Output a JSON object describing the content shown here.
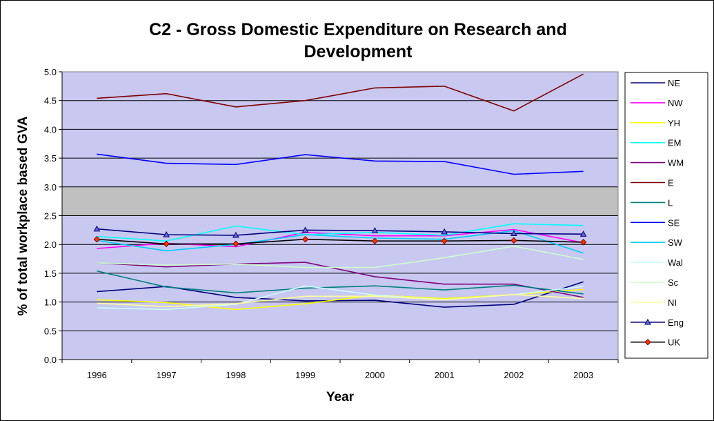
{
  "chart_data": {
    "type": "line",
    "title_line1": "C2 - Gross Domestic Expenditure on Research and",
    "title_line2": "Development",
    "xlabel": "Year",
    "ylabel": "% of total workplace based GVA",
    "x": [
      "1996",
      "1997",
      "1998",
      "1999",
      "2000",
      "2001",
      "2002",
      "2003"
    ],
    "ylim": [
      0,
      5
    ],
    "yticks": [
      "0.0",
      "0.5",
      "1.0",
      "1.5",
      "2.0",
      "2.5",
      "3.0",
      "3.5",
      "4.0",
      "4.5",
      "5.0"
    ],
    "grid": true,
    "legend": "right",
    "plot_background": "#c8c8f0",
    "band_background": "#c0c0c0",
    "series": [
      {
        "name": "NE",
        "color": "#000080",
        "marker": "none",
        "values": [
          1.18,
          1.27,
          1.08,
          1.02,
          1.03,
          0.91,
          0.96,
          1.35
        ]
      },
      {
        "name": "NW",
        "color": "#ff00ff",
        "marker": "none",
        "values": [
          1.93,
          2.02,
          1.96,
          2.21,
          2.15,
          2.15,
          2.26,
          2.03
        ]
      },
      {
        "name": "YH",
        "color": "#ffff00",
        "marker": "none",
        "values": [
          1.04,
          0.99,
          0.87,
          0.97,
          1.12,
          1.06,
          1.13,
          1.22
        ]
      },
      {
        "name": "EM",
        "color": "#00ffff",
        "marker": "none",
        "values": [
          2.14,
          2.06,
          2.32,
          2.17,
          2.21,
          2.16,
          2.36,
          2.33
        ]
      },
      {
        "name": "WM",
        "color": "#800080",
        "marker": "none",
        "values": [
          1.68,
          1.61,
          1.66,
          1.69,
          1.44,
          1.31,
          1.31,
          1.08
        ]
      },
      {
        "name": "E",
        "color": "#800000",
        "marker": "none",
        "values": [
          4.54,
          4.62,
          4.39,
          4.5,
          4.72,
          4.75,
          4.32,
          4.96
        ]
      },
      {
        "name": "L",
        "color": "#008080",
        "marker": "none",
        "values": [
          1.54,
          1.26,
          1.16,
          1.24,
          1.28,
          1.21,
          1.29,
          1.14
        ]
      },
      {
        "name": "SE",
        "color": "#0000ff",
        "marker": "none",
        "values": [
          3.57,
          3.41,
          3.39,
          3.56,
          3.45,
          3.44,
          3.22,
          3.27
        ]
      },
      {
        "name": "SW",
        "color": "#00ccff",
        "marker": "none",
        "values": [
          2.07,
          1.89,
          2.0,
          2.17,
          2.11,
          2.09,
          2.24,
          1.85
        ]
      },
      {
        "name": "Wal",
        "color": "#ccffff",
        "marker": "none",
        "values": [
          0.9,
          0.87,
          0.96,
          1.28,
          1.12,
          1.04,
          1.13,
          1.27
        ]
      },
      {
        "name": "Sc",
        "color": "#ccffcc",
        "marker": "none",
        "values": [
          1.68,
          1.64,
          1.66,
          1.6,
          1.6,
          1.77,
          1.97,
          1.74
        ]
      },
      {
        "name": "NI",
        "color": "#ffff99",
        "marker": "none",
        "values": [
          0.98,
          0.92,
          0.97,
          1.1,
          1.1,
          1.04,
          1.13,
          1.06
        ]
      },
      {
        "name": "Eng",
        "color": "#000080",
        "marker": "triangle",
        "marker_fill": "#6666cc",
        "values": [
          2.27,
          2.17,
          2.16,
          2.25,
          2.24,
          2.22,
          2.19,
          2.18
        ]
      },
      {
        "name": "UK",
        "color": "#800000",
        "line_color": "#000000",
        "marker": "diamond",
        "marker_fill": "#ff3300",
        "values": [
          2.09,
          2.01,
          2.01,
          2.09,
          2.06,
          2.06,
          2.07,
          2.04
        ]
      }
    ]
  }
}
